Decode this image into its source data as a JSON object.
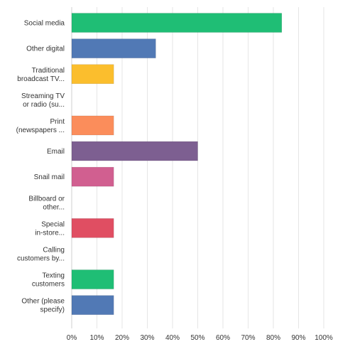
{
  "chart_data": {
    "type": "bar",
    "orientation": "horizontal",
    "categories": [
      [
        "Social media"
      ],
      [
        "Other digital"
      ],
      [
        "Traditional",
        "broadcast TV..."
      ],
      [
        "Streaming TV",
        "or radio (su..."
      ],
      [
        "Print",
        "(newspapers ..."
      ],
      [
        "Email"
      ],
      [
        "Snail mail"
      ],
      [
        "Billboard or",
        "other..."
      ],
      [
        "Special",
        "in-store..."
      ],
      [
        "Calling",
        "customers by..."
      ],
      [
        "Texting",
        "customers"
      ],
      [
        "Other (please",
        "specify)"
      ]
    ],
    "values": [
      83.33,
      33.33,
      16.67,
      0,
      16.67,
      50.0,
      16.67,
      0,
      16.67,
      0,
      16.67,
      16.67
    ],
    "colors": [
      "#1fbe75",
      "#5179b5",
      "#fbbe2d",
      "#e57d49",
      "#fb8d5b",
      "#7d5f91",
      "#d15f90",
      "#9bbe55",
      "#e04e62",
      "#f0a06b",
      "#1fbe75",
      "#5179b5"
    ],
    "xlim": [
      0,
      100
    ],
    "xticks": [
      "0%",
      "10%",
      "20%",
      "30%",
      "40%",
      "50%",
      "60%",
      "70%",
      "80%",
      "90%",
      "100%"
    ],
    "grid": true,
    "title": "",
    "xlabel": "",
    "ylabel": ""
  }
}
